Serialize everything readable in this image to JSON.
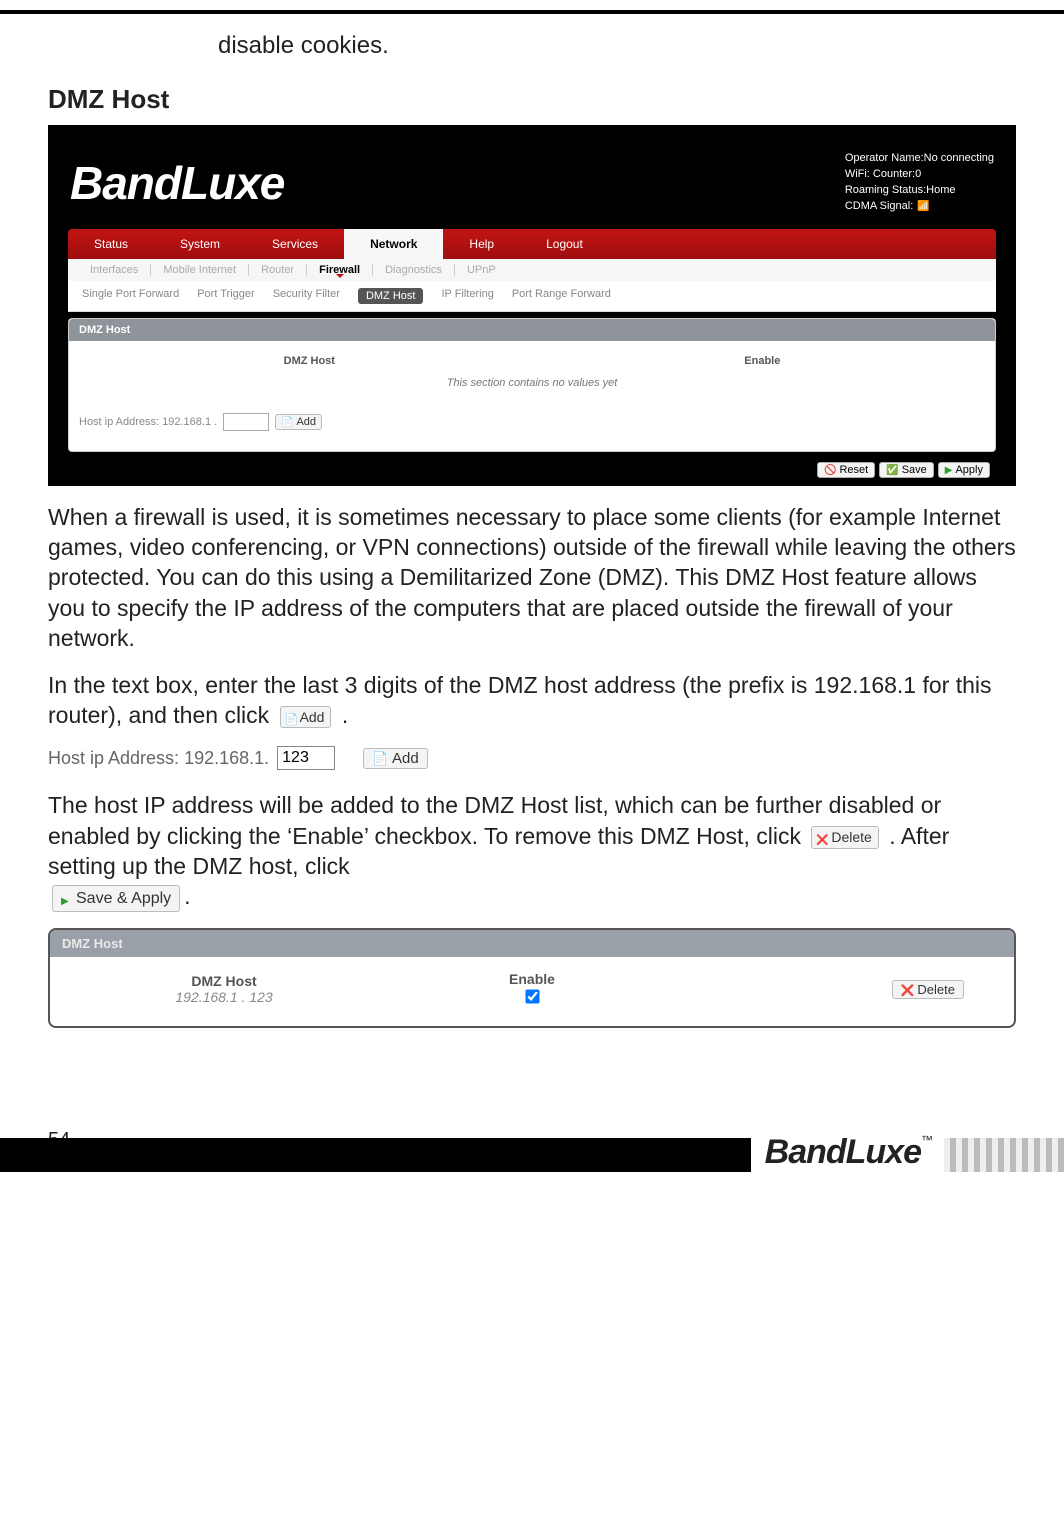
{
  "intro_line": "disable cookies.",
  "section_title": "DMZ Host",
  "screenshot1": {
    "brand": "BandLuxe",
    "status": {
      "l1": "Operator Name:No connecting",
      "l2": "WiFi: Counter:0",
      "l3": "Roaming Status:Home",
      "l4": "CDMA Signal:"
    },
    "main_tabs": [
      "Status",
      "System",
      "Services",
      "Network",
      "Help",
      "Logout"
    ],
    "main_active": "Network",
    "sub1": [
      "Interfaces",
      "Mobile Internet",
      "Router",
      "Firewall",
      "Diagnostics",
      "UPnP"
    ],
    "sub1_active": "Firewall",
    "sub2": [
      "Single Port Forward",
      "Port Trigger",
      "Security Filter",
      "DMZ Host",
      "IP Filtering",
      "Port Range Forward"
    ],
    "sub2_active": "DMZ Host",
    "panel_title": "DMZ Host",
    "col1": "DMZ Host",
    "col2": "Enable",
    "empty_msg": "This section contains no values yet",
    "host_label": "Host ip Address:  192.168.1 .",
    "add_label": "Add",
    "footer_buttons": {
      "reset": "Reset",
      "save": "Save",
      "apply": "Apply"
    }
  },
  "para1": "When a firewall is used, it is sometimes necessary to place some clients (for example Internet games, video conferencing, or VPN connections) outside of the firewall while leaving the others protected. You can do this using a Demilitarized Zone (DMZ). This DMZ Host feature allows you to specify the IP address of the computers that are placed outside the firewall of your network.",
  "para2_a": "In the text box, enter the last 3 digits of the DMZ host address (the prefix is 192.168.1 for this router), and then click ",
  "para2_b": ".",
  "hostip_demo": {
    "label": "Host ip Address: 192.168.1.",
    "value": "123",
    "add": "Add"
  },
  "para3_a": "The host IP address will be added to the DMZ Host list, which can be further disabled or enabled by clicking the ‘Enable’ checkbox. To remove this DMZ Host, click ",
  "para3_b": ". After setting up the DMZ host, click ",
  "inline_buttons": {
    "add": "Add",
    "delete": "Delete",
    "save_apply": "Save & Apply"
  },
  "panel2": {
    "title": "DMZ Host",
    "col1": "DMZ Host",
    "col2": "Enable",
    "host": "192.168.1 . 123",
    "delete": "Delete"
  },
  "footer": {
    "page_no": "54",
    "brand": "BandLuxe",
    "tm": "™"
  },
  "colors": {
    "nav_red_top": "#c31414",
    "nav_red_bot": "#9e0d0d",
    "panel_header": "#8f949b",
    "panel2_header": "#9aa0a7",
    "text_muted": "#888888"
  }
}
